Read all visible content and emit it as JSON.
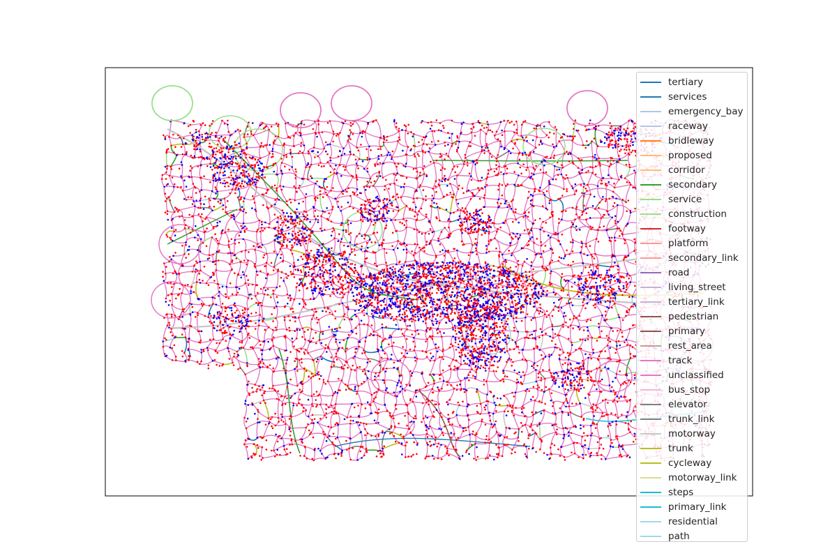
{
  "figure": {
    "background": "#ffffff",
    "axes_border_color": "#000000",
    "node_colors": [
      "#ff0000",
      "#0000ff"
    ],
    "legend_placement": "upper right"
  },
  "legend": {
    "items": [
      {
        "label": "tertiary",
        "color": "#1f77b4"
      },
      {
        "label": "services",
        "color": "#1f77b4"
      },
      {
        "label": "emergency_bay",
        "color": "#aec7e8"
      },
      {
        "label": "raceway",
        "color": "#aec7e8"
      },
      {
        "label": "bridleway",
        "color": "#ff7f0e"
      },
      {
        "label": "proposed",
        "color": "#ffbb78"
      },
      {
        "label": "corridor",
        "color": "#ffbb78"
      },
      {
        "label": "secondary",
        "color": "#2ca02c"
      },
      {
        "label": "service",
        "color": "#98df8a"
      },
      {
        "label": "construction",
        "color": "#98df8a"
      },
      {
        "label": "footway",
        "color": "#d62728"
      },
      {
        "label": "platform",
        "color": "#ff9896"
      },
      {
        "label": "secondary_link",
        "color": "#ff9896"
      },
      {
        "label": "road",
        "color": "#9467bd"
      },
      {
        "label": "living_street",
        "color": "#c5b0d5"
      },
      {
        "label": "tertiary_link",
        "color": "#c5b0d5"
      },
      {
        "label": "pedestrian",
        "color": "#8c564b"
      },
      {
        "label": "primary",
        "color": "#8c564b"
      },
      {
        "label": "rest_area",
        "color": "#c49c94"
      },
      {
        "label": "track",
        "color": "#e377c2"
      },
      {
        "label": "unclassified",
        "color": "#e377c2"
      },
      {
        "label": "bus_stop",
        "color": "#f7b6d2"
      },
      {
        "label": "elevator",
        "color": "#7f7f7f"
      },
      {
        "label": "trunk_link",
        "color": "#7f7f7f"
      },
      {
        "label": "motorway",
        "color": "#c7c7c7"
      },
      {
        "label": "trunk",
        "color": "#bcbd22"
      },
      {
        "label": "cycleway",
        "color": "#bcbd22"
      },
      {
        "label": "motorway_link",
        "color": "#dbdb8d"
      },
      {
        "label": "steps",
        "color": "#17becf"
      },
      {
        "label": "primary_link",
        "color": "#17becf"
      },
      {
        "label": "residential",
        "color": "#9edae5"
      },
      {
        "label": "path",
        "color": "#9edae5"
      }
    ]
  }
}
